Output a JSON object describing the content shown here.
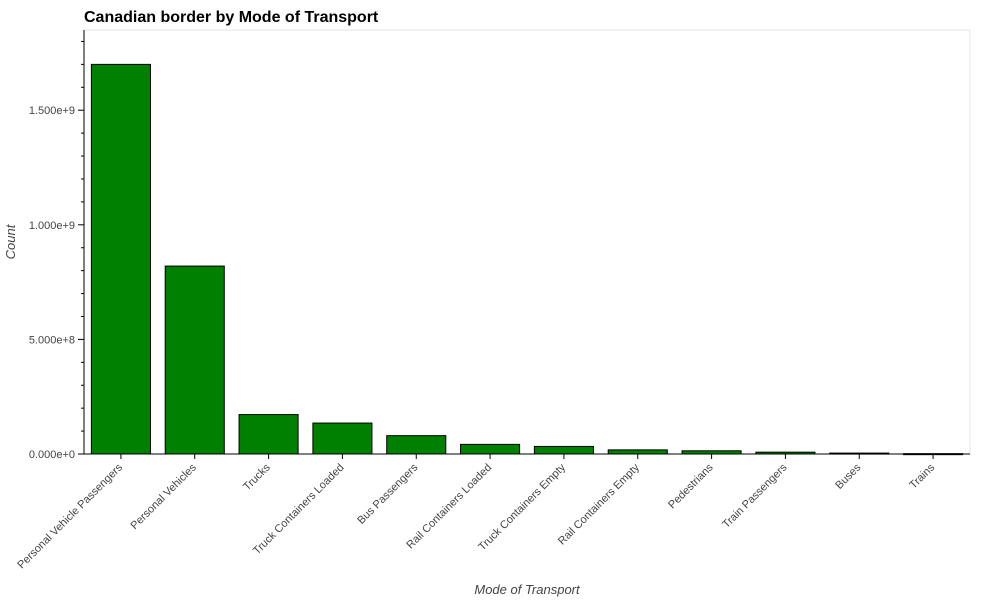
{
  "chart_data": {
    "type": "bar",
    "title": "Canadian border by Mode of Transport",
    "xlabel": "Mode of Transport",
    "ylabel": "Count",
    "categories": [
      "Personal Vehicle Passengers",
      "Personal Vehicles",
      "Trucks",
      "Truck Containers Loaded",
      "Bus Passengers",
      "Rail Containers Loaded",
      "Truck Containers Empty",
      "Rail Containers Empty",
      "Pedestrians",
      "Train Passengers",
      "Buses",
      "Trains"
    ],
    "values": [
      1700000000,
      820000000,
      172000000,
      135000000,
      80000000,
      42000000,
      33000000,
      18000000,
      14000000,
      8000000,
      4000000,
      1500000
    ],
    "yticks": [
      0,
      500000000,
      1000000000,
      1500000000
    ],
    "ytick_labels": [
      "0.000e+0",
      "5.000e+8",
      "1.000e+9",
      "1.500e+9"
    ],
    "ylim": [
      0,
      1850000000
    ],
    "bar_color": "#008000",
    "bar_edge_color": "#000000",
    "grid": false,
    "legend": "none"
  }
}
